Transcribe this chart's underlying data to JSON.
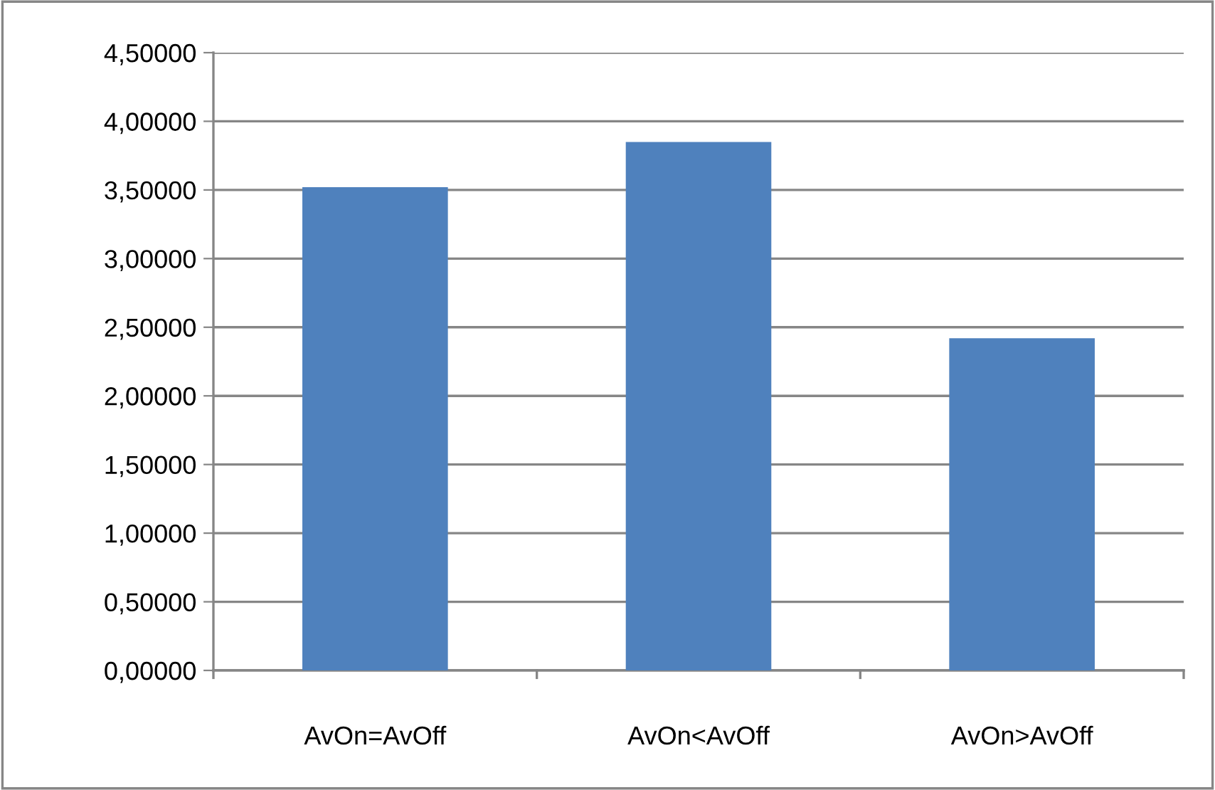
{
  "chart_data": {
    "type": "bar",
    "categories": [
      "AvOn=AvOff",
      "AvOn<AvOff",
      "AvOn>AvOff"
    ],
    "values": [
      3.52,
      3.85,
      2.42
    ],
    "color": "#4f81bd",
    "ylim": [
      0,
      4.5
    ],
    "yticks": [
      {
        "value": 0,
        "label": "0,00000"
      },
      {
        "value": 0.5,
        "label": "0,50000"
      },
      {
        "value": 1,
        "label": "1,00000"
      },
      {
        "value": 1.5,
        "label": "1,50000"
      },
      {
        "value": 2,
        "label": "2,00000"
      },
      {
        "value": 2.5,
        "label": "2,50000"
      },
      {
        "value": 3,
        "label": "3,00000"
      },
      {
        "value": 3.5,
        "label": "3,50000"
      },
      {
        "value": 4,
        "label": "4,00000"
      },
      {
        "value": 4.5,
        "label": "4,50000"
      }
    ],
    "grid": "y",
    "legend": false
  }
}
